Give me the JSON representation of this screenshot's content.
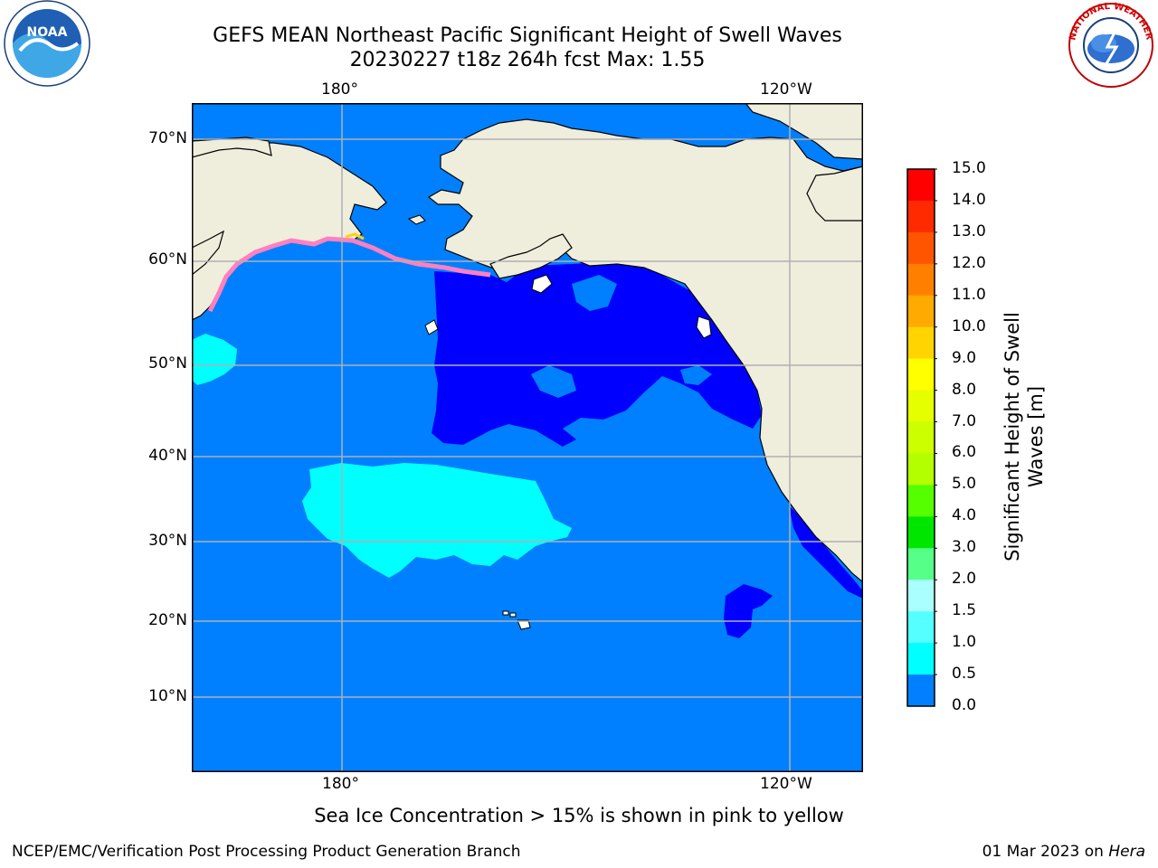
{
  "title": {
    "line1": "GEFS MEAN Northeast Pacific Significant Height of Swell Waves",
    "line2": "20230227 t18z 264h fcst   Max: 1.55"
  },
  "map": {
    "lon_labels_top": [
      "180°",
      "120°W"
    ],
    "lon_labels_bottom": [
      "180°",
      "120°W"
    ],
    "lat_labels": [
      "70°N",
      "60°N",
      "50°N",
      "40°N",
      "30°N",
      "20°N",
      "10°N"
    ],
    "colors": {
      "land": "#efeddc",
      "ocean_base": "#0080ff",
      "low_swell": "#0000ff",
      "mid_swell": "#00ffff",
      "grid": "#b0b0b0"
    }
  },
  "colorbar": {
    "ticks": [
      "15.0",
      "14.0",
      "13.0",
      "12.0",
      "11.0",
      "10.0",
      "9.0",
      "8.0",
      "7.0",
      "6.0",
      "5.0",
      "4.0",
      "3.0",
      "2.0",
      "1.5",
      "1.0",
      "0.5",
      "0.0"
    ],
    "colors_top_to_bottom": [
      "#ff0000",
      "#ff2a00",
      "#ff5500",
      "#ff8000",
      "#ffaa00",
      "#ffd400",
      "#ffff00",
      "#e6ff00",
      "#ccff00",
      "#b3ff00",
      "#55ff00",
      "#00e600",
      "#55ff88",
      "#aaffff",
      "#55ffff",
      "#00ffff",
      "#0080ff",
      "#0000ff"
    ],
    "label_line1": "Significant Height of Swell",
    "label_line2": "Waves [m]"
  },
  "note": "Sea Ice Concentration > 15% is shown in pink to yellow",
  "credit": "NCEP/EMC/Verification Post Processing Product Generation Branch",
  "date_prefix": "01 Mar 2023 on ",
  "date_host": "Hera",
  "logos": {
    "noaa_text": "NOAA",
    "nws_text": "NATIONAL WEATHER SERVICE"
  }
}
